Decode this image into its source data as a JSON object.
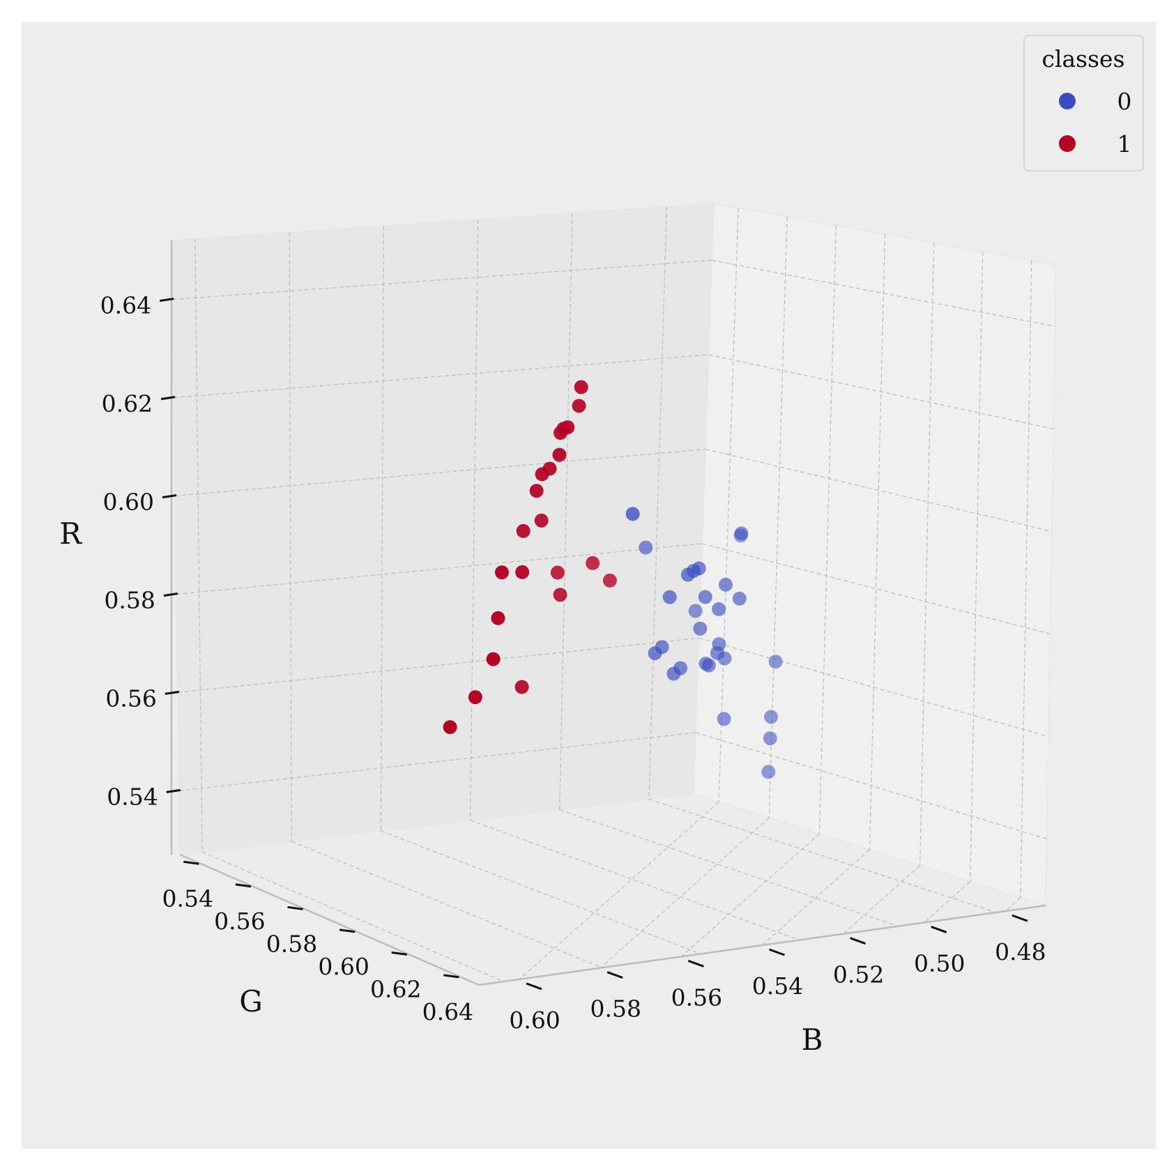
{
  "chart_data": {
    "type": "scatter",
    "projection": "3d",
    "title": "",
    "xlabel": "B",
    "ylabel": "G",
    "zlabel": "R",
    "xlim": [
      0.47,
      0.61
    ],
    "ylim": [
      0.53,
      0.645
    ],
    "zlim": [
      0.527,
      0.652
    ],
    "x_ticks": [
      "0.48",
      "0.50",
      "0.52",
      "0.54",
      "0.56",
      "0.58",
      "0.60"
    ],
    "y_ticks": [
      "0.54",
      "0.56",
      "0.58",
      "0.60",
      "0.62",
      "0.64"
    ],
    "z_ticks": [
      "0.54",
      "0.56",
      "0.58",
      "0.60",
      "0.62",
      "0.64"
    ],
    "grid": true,
    "legend": {
      "title": "classes",
      "placement": "top-right",
      "entries": [
        "0",
        "1"
      ]
    },
    "colors": {
      "class_0": "#3b4cc0",
      "class_1": "#b40426",
      "background": "#ededed"
    },
    "series": [
      {
        "name": "0",
        "points": [
          {
            "B": 0.5395,
            "G": 0.5779,
            "R": 0.6036
          },
          {
            "B": 0.5222,
            "G": 0.546,
            "R": 0.5935
          },
          {
            "B": 0.5287,
            "G": 0.5611,
            "R": 0.5873
          },
          {
            "B": 0.5264,
            "G": 0.5575,
            "R": 0.5879
          },
          {
            "B": 0.5251,
            "G": 0.558,
            "R": 0.5872
          },
          {
            "B": 0.522,
            "G": 0.5496,
            "R": 0.5829
          },
          {
            "B": 0.5216,
            "G": 0.5615,
            "R": 0.5814
          },
          {
            "B": 0.5223,
            "G": 0.5542,
            "R": 0.5808
          },
          {
            "B": 0.5227,
            "G": 0.5516,
            "R": 0.578
          },
          {
            "B": 0.5214,
            "G": 0.5464,
            "R": 0.5795
          },
          {
            "B": 0.5119,
            "G": 0.5501,
            "R": 0.5719
          },
          {
            "B": 0.5108,
            "G": 0.5579,
            "R": 0.5686
          },
          {
            "B": 0.5128,
            "G": 0.5605,
            "R": 0.5679
          },
          {
            "B": 0.515,
            "G": 0.5482,
            "R": 0.567
          },
          {
            "B": 0.5119,
            "G": 0.5491,
            "R": 0.5643
          },
          {
            "B": 0.5094,
            "G": 0.5448,
            "R": 0.5676
          },
          {
            "B": 0.513,
            "G": 0.5552,
            "R": 0.5642
          },
          {
            "B": 0.5109,
            "G": 0.5556,
            "R": 0.5627
          },
          {
            "B": 0.4944,
            "G": 0.5417,
            "R": 0.5719
          },
          {
            "B": 0.4897,
            "G": 0.5497,
            "R": 0.5855
          },
          {
            "B": 0.4957,
            "G": 0.532,
            "R": 0.5874
          },
          {
            "B": 0.5066,
            "G": 0.5422,
            "R": 0.5638
          },
          {
            "B": 0.5112,
            "G": 0.5481,
            "R": 0.5637
          },
          {
            "B": 0.5181,
            "G": 0.5373,
            "R": 0.5645
          },
          {
            "B": 0.5141,
            "G": 0.5365,
            "R": 0.5519
          },
          {
            "B": 0.5062,
            "G": 0.5425,
            "R": 0.5508
          },
          {
            "B": 0.5161,
            "G": 0.5379,
            "R": 0.5478
          },
          {
            "B": 0.5077,
            "G": 0.534,
            "R": 0.5387
          }
        ]
      },
      {
        "name": "1",
        "points": [
          {
            "B": 0.5731,
            "G": 0.6041,
            "R": 0.638
          },
          {
            "B": 0.5674,
            "G": 0.602,
            "R": 0.633
          },
          {
            "B": 0.5689,
            "G": 0.6052,
            "R": 0.6291
          },
          {
            "B": 0.5628,
            "G": 0.6032,
            "R": 0.6276
          },
          {
            "B": 0.5599,
            "G": 0.6025,
            "R": 0.6262
          },
          {
            "B": 0.5709,
            "G": 0.608,
            "R": 0.624
          },
          {
            "B": 0.5589,
            "G": 0.6045,
            "R": 0.6188
          },
          {
            "B": 0.5584,
            "G": 0.6059,
            "R": 0.6177
          },
          {
            "B": 0.5538,
            "G": 0.605,
            "R": 0.6134
          },
          {
            "B": 0.5461,
            "G": 0.6005,
            "R": 0.6055
          },
          {
            "B": 0.5457,
            "G": 0.6042,
            "R": 0.6036
          },
          {
            "B": 0.5352,
            "G": 0.5846,
            "R": 0.5932
          },
          {
            "B": 0.5339,
            "G": 0.5804,
            "R": 0.5889
          },
          {
            "B": 0.5294,
            "G": 0.5893,
            "R": 0.5907
          },
          {
            "B": 0.5366,
            "G": 0.5924,
            "R": 0.5876
          },
          {
            "B": 0.5575,
            "G": 0.6145,
            "R": 0.5981
          },
          {
            "B": 0.557,
            "G": 0.61,
            "R": 0.5976
          },
          {
            "B": 0.5496,
            "G": 0.6119,
            "R": 0.587
          },
          {
            "B": 0.5723,
            "G": 0.6236,
            "R": 0.5838
          },
          {
            "B": 0.5542,
            "G": 0.6193,
            "R": 0.5723
          },
          {
            "B": 0.5441,
            "G": 0.6047,
            "R": 0.571
          },
          {
            "B": 0.5903,
            "G": 0.6409,
            "R": 0.5751
          }
        ]
      }
    ]
  }
}
